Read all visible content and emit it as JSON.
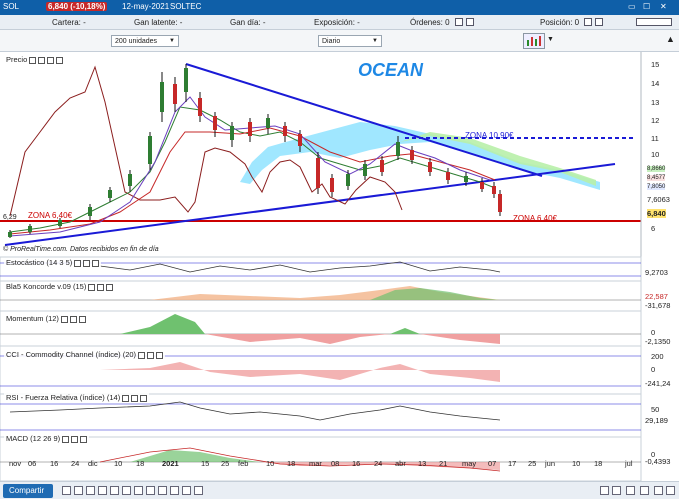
{
  "titlebar": {
    "symbol": "SOL",
    "price": "6,840 (-10,18%)",
    "date": "12-may-2021",
    "name": "SOLTEC"
  },
  "infobar": {
    "cartera": "Cartera: -",
    "ganancia": "Gan latente: -",
    "ganancia_dia": "Gan día: -",
    "exposicion": "Exposición: -",
    "ordenes": "Órdenes: 0",
    "posicion": "Posición: 0"
  },
  "controls": {
    "units": "200 unidades",
    "period": "Diario"
  },
  "chart": {
    "title": "OCEAN",
    "zona_high": "ZONA 10,90€",
    "zona_low_left": "ZONA 6,40€",
    "zona_low_right": "ZONA 6,40€",
    "left_level": "6,29",
    "footer": "© ProRealTime.com. Datos recibidos en fin de día",
    "price_axis": [
      "15",
      "14",
      "13",
      "12",
      "11",
      "10",
      "7,6063",
      "6,840",
      "6"
    ],
    "price_axis_hidden": [
      "8,8660",
      "8,4577",
      "7,8050",
      "6,6140"
    ],
    "x_axis": [
      "nov",
      "06",
      "16",
      "24",
      "dic",
      "10",
      "18",
      "2021",
      "15",
      "25",
      "feb",
      "10",
      "18",
      "mar",
      "08",
      "16",
      "24",
      "abr",
      "13",
      "21",
      "may",
      "07",
      "17",
      "25",
      "jun",
      "10",
      "18",
      "jul"
    ]
  },
  "panels": [
    {
      "label": "Precio",
      "values": []
    },
    {
      "label": "Estocástico (14 3 5)",
      "values": [
        "9,2703"
      ]
    },
    {
      "label": "Bla5 Koncorde v.09 (15)",
      "values": [
        "22,587",
        "-31,678"
      ]
    },
    {
      "label": "Momentum (12)",
      "values": [
        "0",
        "-2,1350"
      ]
    },
    {
      "label": "CCI - Commodity Channel (índice) (20)",
      "values": [
        "200",
        "0",
        "-241,24"
      ]
    },
    {
      "label": "RSI - Fuerza Relativa (índice) (14)",
      "values": [
        "50",
        "29,189"
      ]
    },
    {
      "label": "MACD (12 26 9)",
      "values": [
        "0",
        "-0,4393"
      ]
    }
  ],
  "bottombar": {
    "share": "Compartir"
  },
  "colors": {
    "titlebar": "#0f5fa8",
    "trend": "#1a1ad6",
    "zone": "#cc0000",
    "cloud_blue": "#8fe3ff",
    "cloud_green": "#b8f0a8"
  }
}
